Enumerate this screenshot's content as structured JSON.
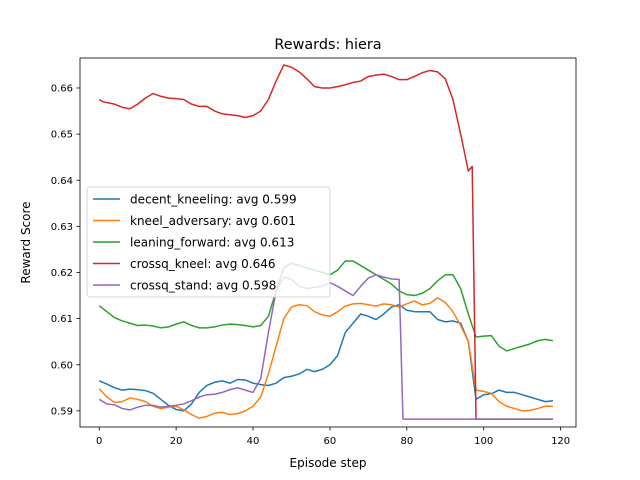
{
  "chart_data": {
    "type": "line",
    "title": "Rewards: hiera",
    "xlabel": "Episode step",
    "ylabel": "Reward Score",
    "xlim": [
      -5,
      124
    ],
    "ylim": [
      0.5865,
      0.6665
    ],
    "xticks": [
      0,
      20,
      40,
      60,
      80,
      100,
      120
    ],
    "yticks": [
      0.59,
      0.6,
      0.61,
      0.62,
      0.63,
      0.64,
      0.65,
      0.66
    ],
    "ytick_labels": [
      "0.59",
      "0.60",
      "0.61",
      "0.62",
      "0.63",
      "0.64",
      "0.65",
      "0.66"
    ],
    "grid": false,
    "legend_position": "center-left",
    "series": [
      {
        "name": "decent_kneeling: avg 0.599",
        "color": "#1f77b4",
        "points": [
          [
            0,
            0.5965
          ],
          [
            2,
            0.5958
          ],
          [
            4,
            0.595
          ],
          [
            6,
            0.5945
          ],
          [
            8,
            0.5947
          ],
          [
            10,
            0.5946
          ],
          [
            12,
            0.5944
          ],
          [
            14,
            0.5938
          ],
          [
            16,
            0.5925
          ],
          [
            18,
            0.5912
          ],
          [
            20,
            0.5903
          ],
          [
            22,
            0.59
          ],
          [
            24,
            0.5915
          ],
          [
            26,
            0.594
          ],
          [
            28,
            0.5955
          ],
          [
            30,
            0.5962
          ],
          [
            32,
            0.5965
          ],
          [
            34,
            0.596
          ],
          [
            36,
            0.5968
          ],
          [
            38,
            0.5967
          ],
          [
            40,
            0.596
          ],
          [
            42,
            0.5957
          ],
          [
            44,
            0.5955
          ],
          [
            46,
            0.596
          ],
          [
            48,
            0.5972
          ],
          [
            50,
            0.5975
          ],
          [
            52,
            0.598
          ],
          [
            54,
            0.599
          ],
          [
            56,
            0.5985
          ],
          [
            58,
            0.599
          ],
          [
            60,
            0.6
          ],
          [
            62,
            0.602
          ],
          [
            64,
            0.607
          ],
          [
            66,
            0.609
          ],
          [
            68,
            0.611
          ],
          [
            70,
            0.6105
          ],
          [
            72,
            0.6098
          ],
          [
            74,
            0.611
          ],
          [
            76,
            0.6125
          ],
          [
            78,
            0.613
          ],
          [
            80,
            0.6118
          ],
          [
            82,
            0.6115
          ],
          [
            84,
            0.6115
          ],
          [
            86,
            0.6115
          ],
          [
            88,
            0.6098
          ],
          [
            90,
            0.6093
          ],
          [
            92,
            0.6095
          ],
          [
            94,
            0.609
          ],
          [
            96,
            0.605
          ],
          [
            98,
            0.5925
          ],
          [
            100,
            0.5935
          ],
          [
            102,
            0.5937
          ],
          [
            104,
            0.5945
          ],
          [
            106,
            0.594
          ],
          [
            108,
            0.594
          ],
          [
            110,
            0.5935
          ],
          [
            112,
            0.593
          ],
          [
            114,
            0.5925
          ],
          [
            116,
            0.592
          ],
          [
            118,
            0.5922
          ]
        ]
      },
      {
        "name": "kneel_adversary: avg 0.601",
        "color": "#ff7f0e",
        "points": [
          [
            0,
            0.5948
          ],
          [
            2,
            0.593
          ],
          [
            4,
            0.5918
          ],
          [
            6,
            0.592
          ],
          [
            8,
            0.5928
          ],
          [
            10,
            0.5925
          ],
          [
            12,
            0.592
          ],
          [
            14,
            0.591
          ],
          [
            16,
            0.5905
          ],
          [
            18,
            0.5908
          ],
          [
            20,
            0.591
          ],
          [
            22,
            0.5902
          ],
          [
            24,
            0.5892
          ],
          [
            26,
            0.5884
          ],
          [
            28,
            0.5888
          ],
          [
            30,
            0.5895
          ],
          [
            32,
            0.5897
          ],
          [
            34,
            0.5892
          ],
          [
            36,
            0.5894
          ],
          [
            38,
            0.59
          ],
          [
            40,
            0.591
          ],
          [
            42,
            0.593
          ],
          [
            44,
            0.598
          ],
          [
            46,
            0.604
          ],
          [
            48,
            0.61
          ],
          [
            50,
            0.6125
          ],
          [
            52,
            0.613
          ],
          [
            54,
            0.6128
          ],
          [
            56,
            0.6115
          ],
          [
            58,
            0.6108
          ],
          [
            60,
            0.6105
          ],
          [
            62,
            0.6115
          ],
          [
            64,
            0.6127
          ],
          [
            66,
            0.6132
          ],
          [
            68,
            0.6133
          ],
          [
            70,
            0.613
          ],
          [
            72,
            0.6127
          ],
          [
            74,
            0.6132
          ],
          [
            76,
            0.613
          ],
          [
            78,
            0.6125
          ],
          [
            80,
            0.6132
          ],
          [
            82,
            0.6138
          ],
          [
            84,
            0.613
          ],
          [
            86,
            0.6133
          ],
          [
            88,
            0.6145
          ],
          [
            90,
            0.6135
          ],
          [
            92,
            0.6115
          ],
          [
            94,
            0.6085
          ],
          [
            96,
            0.605
          ],
          [
            98,
            0.5945
          ],
          [
            100,
            0.5942
          ],
          [
            102,
            0.5938
          ],
          [
            104,
            0.592
          ],
          [
            106,
            0.591
          ],
          [
            108,
            0.5905
          ],
          [
            110,
            0.59
          ],
          [
            112,
            0.5901
          ],
          [
            114,
            0.5905
          ],
          [
            116,
            0.591
          ],
          [
            118,
            0.591
          ]
        ]
      },
      {
        "name": "leaning_forward: avg 0.613",
        "color": "#2ca02c",
        "points": [
          [
            0,
            0.6128
          ],
          [
            2,
            0.6115
          ],
          [
            4,
            0.6102
          ],
          [
            6,
            0.6095
          ],
          [
            8,
            0.609
          ],
          [
            10,
            0.6085
          ],
          [
            12,
            0.6086
          ],
          [
            14,
            0.6084
          ],
          [
            16,
            0.608
          ],
          [
            18,
            0.6082
          ],
          [
            20,
            0.6088
          ],
          [
            22,
            0.6093
          ],
          [
            24,
            0.6085
          ],
          [
            26,
            0.608
          ],
          [
            28,
            0.608
          ],
          [
            30,
            0.6082
          ],
          [
            32,
            0.6086
          ],
          [
            34,
            0.6088
          ],
          [
            36,
            0.6087
          ],
          [
            38,
            0.6085
          ],
          [
            40,
            0.6082
          ],
          [
            42,
            0.6085
          ],
          [
            44,
            0.6105
          ],
          [
            46,
            0.616
          ],
          [
            48,
            0.621
          ],
          [
            50,
            0.622
          ],
          [
            52,
            0.6215
          ],
          [
            54,
            0.621
          ],
          [
            56,
            0.6205
          ],
          [
            58,
            0.62
          ],
          [
            60,
            0.6195
          ],
          [
            62,
            0.6205
          ],
          [
            64,
            0.6225
          ],
          [
            66,
            0.6225
          ],
          [
            68,
            0.6215
          ],
          [
            70,
            0.6205
          ],
          [
            72,
            0.6195
          ],
          [
            74,
            0.6185
          ],
          [
            76,
            0.6175
          ],
          [
            78,
            0.616
          ],
          [
            80,
            0.6152
          ],
          [
            82,
            0.615
          ],
          [
            84,
            0.6155
          ],
          [
            86,
            0.6165
          ],
          [
            88,
            0.6182
          ],
          [
            90,
            0.6195
          ],
          [
            92,
            0.6195
          ],
          [
            94,
            0.6165
          ],
          [
            96,
            0.611
          ],
          [
            98,
            0.606
          ],
          [
            100,
            0.6062
          ],
          [
            102,
            0.6063
          ],
          [
            104,
            0.604
          ],
          [
            106,
            0.603
          ],
          [
            108,
            0.6035
          ],
          [
            110,
            0.604
          ],
          [
            112,
            0.6045
          ],
          [
            114,
            0.6052
          ],
          [
            116,
            0.6055
          ],
          [
            118,
            0.6052
          ]
        ]
      },
      {
        "name": "crossq_kneel: avg 0.646",
        "color": "#d62728",
        "points": [
          [
            0,
            0.6575
          ],
          [
            1,
            0.657
          ],
          [
            4,
            0.6565
          ],
          [
            6,
            0.6558
          ],
          [
            8,
            0.6555
          ],
          [
            10,
            0.6565
          ],
          [
            12,
            0.6578
          ],
          [
            14,
            0.6588
          ],
          [
            16,
            0.6582
          ],
          [
            18,
            0.6578
          ],
          [
            20,
            0.6577
          ],
          [
            22,
            0.6575
          ],
          [
            24,
            0.6565
          ],
          [
            26,
            0.656
          ],
          [
            28,
            0.656
          ],
          [
            30,
            0.655
          ],
          [
            32,
            0.6544
          ],
          [
            34,
            0.6542
          ],
          [
            36,
            0.654
          ],
          [
            38,
            0.6536
          ],
          [
            40,
            0.654
          ],
          [
            42,
            0.655
          ],
          [
            44,
            0.6575
          ],
          [
            46,
            0.6615
          ],
          [
            48,
            0.665
          ],
          [
            50,
            0.6645
          ],
          [
            52,
            0.6635
          ],
          [
            54,
            0.662
          ],
          [
            56,
            0.6603
          ],
          [
            58,
            0.66
          ],
          [
            60,
            0.66
          ],
          [
            62,
            0.6603
          ],
          [
            64,
            0.6607
          ],
          [
            66,
            0.6612
          ],
          [
            68,
            0.6615
          ],
          [
            70,
            0.6625
          ],
          [
            72,
            0.6628
          ],
          [
            74,
            0.663
          ],
          [
            76,
            0.6625
          ],
          [
            78,
            0.6618
          ],
          [
            80,
            0.6618
          ],
          [
            82,
            0.6625
          ],
          [
            84,
            0.6633
          ],
          [
            86,
            0.6638
          ],
          [
            88,
            0.6635
          ],
          [
            90,
            0.662
          ],
          [
            92,
            0.6575
          ],
          [
            94,
            0.65
          ],
          [
            96,
            0.642
          ],
          [
            97,
            0.643
          ],
          [
            98,
            0.5882
          ],
          [
            100,
            0.5882
          ],
          [
            118,
            0.5882
          ]
        ]
      },
      {
        "name": "crossq_stand: avg 0.598",
        "color": "#9467bd",
        "points": [
          [
            0,
            0.5925
          ],
          [
            2,
            0.5915
          ],
          [
            4,
            0.5913
          ],
          [
            6,
            0.5905
          ],
          [
            8,
            0.5902
          ],
          [
            10,
            0.5908
          ],
          [
            12,
            0.5912
          ],
          [
            14,
            0.5912
          ],
          [
            16,
            0.5908
          ],
          [
            18,
            0.591
          ],
          [
            20,
            0.5912
          ],
          [
            22,
            0.5915
          ],
          [
            24,
            0.5922
          ],
          [
            26,
            0.593
          ],
          [
            28,
            0.5935
          ],
          [
            30,
            0.5936
          ],
          [
            32,
            0.594
          ],
          [
            34,
            0.5946
          ],
          [
            36,
            0.595
          ],
          [
            38,
            0.5945
          ],
          [
            40,
            0.594
          ],
          [
            42,
            0.597
          ],
          [
            44,
            0.607
          ],
          [
            46,
            0.616
          ],
          [
            48,
            0.619
          ],
          [
            50,
            0.6185
          ],
          [
            52,
            0.617
          ],
          [
            54,
            0.6165
          ],
          [
            56,
            0.6168
          ],
          [
            58,
            0.617
          ],
          [
            60,
            0.6178
          ],
          [
            62,
            0.617
          ],
          [
            64,
            0.616
          ],
          [
            66,
            0.615
          ],
          [
            68,
            0.617
          ],
          [
            70,
            0.6188
          ],
          [
            72,
            0.6195
          ],
          [
            74,
            0.619
          ],
          [
            76,
            0.6186
          ],
          [
            78,
            0.6185
          ],
          [
            79,
            0.5882
          ],
          [
            100,
            0.5882
          ],
          [
            118,
            0.5882
          ]
        ]
      }
    ]
  }
}
